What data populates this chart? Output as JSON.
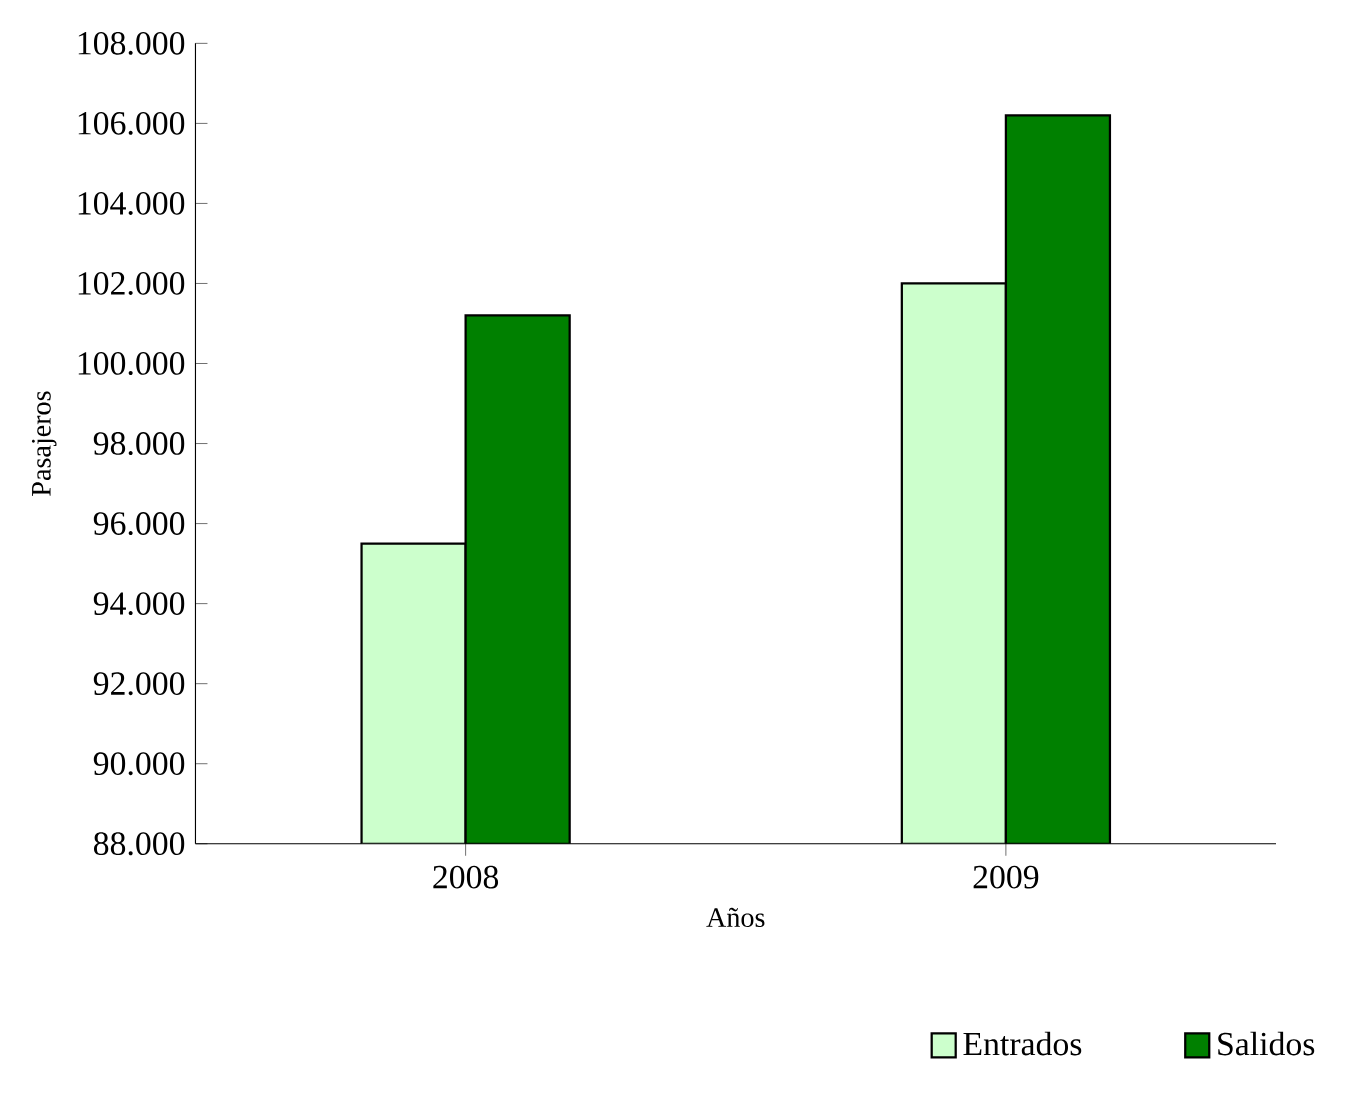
{
  "chart_data": {
    "type": "bar",
    "xlabel": "Años",
    "ylabel": "Pasajeros",
    "categories": [
      "2008",
      "2009"
    ],
    "series": [
      {
        "name": "Entrados",
        "color": "#ccffcc",
        "values": [
          95500,
          102000
        ]
      },
      {
        "name": "Salidos",
        "color": "#008000",
        "values": [
          101200,
          106200
        ]
      }
    ],
    "ylim": [
      88000,
      108000
    ],
    "yticks": [
      {
        "value": 88000,
        "label": "88.000"
      },
      {
        "value": 90000,
        "label": "90.000"
      },
      {
        "value": 92000,
        "label": "92.000"
      },
      {
        "value": 94000,
        "label": "94.000"
      },
      {
        "value": 96000,
        "label": "96.000"
      },
      {
        "value": 98000,
        "label": "98.000"
      },
      {
        "value": 100000,
        "label": "100.000"
      },
      {
        "value": 102000,
        "label": "102.000"
      },
      {
        "value": 104000,
        "label": "104.000"
      },
      {
        "value": 106000,
        "label": "106.000"
      },
      {
        "value": 108000,
        "label": "108.000"
      }
    ],
    "legend": "bottom right",
    "grid": false
  }
}
